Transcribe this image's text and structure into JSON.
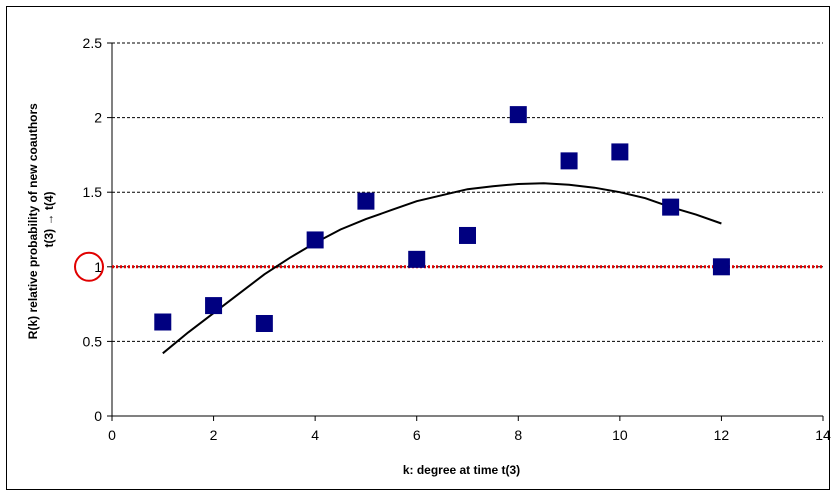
{
  "chart_data": {
    "type": "scatter",
    "xlabel": "k: degree at time t(3)",
    "ylabel_lines": [
      "R(k) relative probability of new coauthors",
      "t(3) → t(4)"
    ],
    "xlim": [
      0,
      14
    ],
    "ylim": [
      0,
      2.5
    ],
    "x_ticks": [
      0,
      2,
      4,
      6,
      8,
      10,
      12,
      14
    ],
    "y_ticks": [
      0,
      0.5,
      1,
      1.5,
      2,
      2.5
    ],
    "y_tick_labels": [
      "0",
      "0.5",
      "1",
      "1.5",
      "2",
      "2.5"
    ],
    "grid": "horizontal dashed",
    "points": [
      {
        "x": 1,
        "y": 0.63
      },
      {
        "x": 2,
        "y": 0.74
      },
      {
        "x": 3,
        "y": 0.62
      },
      {
        "x": 4,
        "y": 1.18
      },
      {
        "x": 5,
        "y": 1.44
      },
      {
        "x": 6,
        "y": 1.05
      },
      {
        "x": 7,
        "y": 1.21
      },
      {
        "x": 8,
        "y": 2.02
      },
      {
        "x": 9,
        "y": 1.71
      },
      {
        "x": 10,
        "y": 1.77
      },
      {
        "x": 11,
        "y": 1.4
      },
      {
        "x": 12,
        "y": 1.0
      }
    ],
    "trendline": {
      "x": [
        1,
        1.5,
        2,
        2.5,
        3,
        3.5,
        4,
        4.5,
        5,
        5.5,
        6,
        6.5,
        7,
        7.5,
        8,
        8.5,
        9,
        9.5,
        10,
        10.5,
        11,
        11.5,
        12
      ],
      "y": [
        0.42,
        0.56,
        0.69,
        0.82,
        0.95,
        1.06,
        1.16,
        1.25,
        1.32,
        1.38,
        1.44,
        1.48,
        1.52,
        1.54,
        1.555,
        1.56,
        1.55,
        1.53,
        1.5,
        1.46,
        1.4,
        1.35,
        1.29
      ]
    },
    "reference_line": {
      "y": 1,
      "style": "red dotted",
      "highlight": "red circle around y tick 1"
    },
    "colors": {
      "points": "#000080",
      "trendline": "#000000",
      "reference": "#e00000",
      "grid": "#000000"
    }
  }
}
